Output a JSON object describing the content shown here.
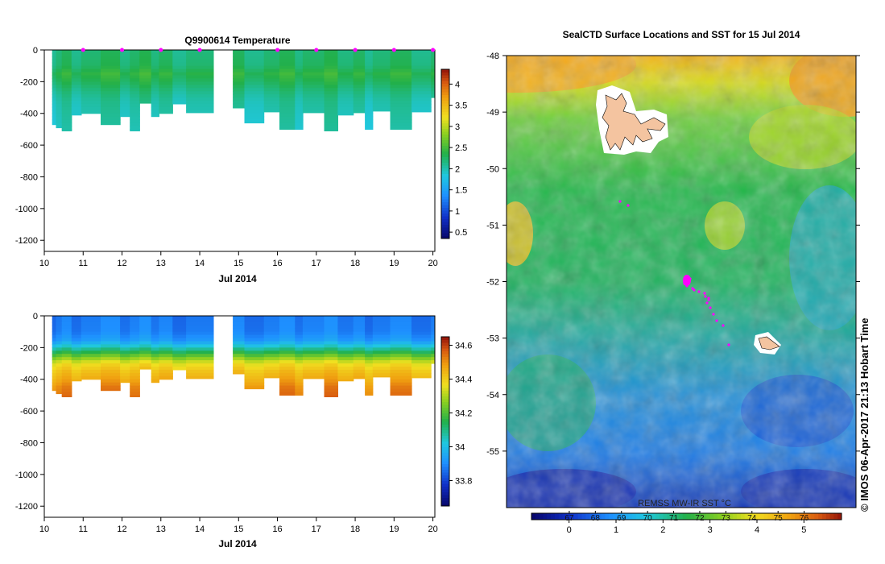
{
  "chart_data": [
    {
      "type": "heatmap",
      "title": "Q9900614  Temperature",
      "xlabel": "Jul 2014",
      "ylabel": "",
      "x_ticks": [
        "10",
        "11",
        "12",
        "13",
        "14",
        "15",
        "16",
        "17",
        "18",
        "19",
        "20"
      ],
      "y_ticks": [
        "0",
        "-200",
        "-400",
        "-600",
        "-800",
        "-1000",
        "-1200"
      ],
      "xlim": [
        10,
        20.05
      ],
      "ylim": [
        -1270,
        0
      ],
      "colorbar_ticks": [
        "0.5",
        "1",
        "1.5",
        "2",
        "2.5",
        "3",
        "3.5",
        "4"
      ],
      "colorbar_range": [
        0.35,
        4.35
      ],
      "profile_markers_x": [
        11,
        12,
        13,
        14,
        16,
        17,
        18,
        19,
        20
      ],
      "profiles": [
        {
          "x0": 10.2,
          "x1": 10.3,
          "bottom": -470
        },
        {
          "x0": 10.3,
          "x1": 10.45,
          "bottom": -490
        },
        {
          "x0": 10.45,
          "x1": 10.7,
          "bottom": -510
        },
        {
          "x0": 10.7,
          "x1": 10.95,
          "bottom": -410
        },
        {
          "x0": 10.95,
          "x1": 11.45,
          "bottom": -400
        },
        {
          "x0": 11.45,
          "x1": 11.95,
          "bottom": -470
        },
        {
          "x0": 11.95,
          "x1": 12.2,
          "bottom": -420
        },
        {
          "x0": 12.2,
          "x1": 12.45,
          "bottom": -510
        },
        {
          "x0": 12.45,
          "x1": 12.75,
          "bottom": -335
        },
        {
          "x0": 12.75,
          "x1": 12.95,
          "bottom": -420
        },
        {
          "x0": 12.95,
          "x1": 13.3,
          "bottom": -400
        },
        {
          "x0": 13.3,
          "x1": 13.65,
          "bottom": -340
        },
        {
          "x0": 13.65,
          "x1": 14.35,
          "bottom": -395
        },
        {
          "x0": 14.85,
          "x1": 15.15,
          "bottom": -365
        },
        {
          "x0": 15.15,
          "x1": 15.65,
          "bottom": -460
        },
        {
          "x0": 15.65,
          "x1": 16.05,
          "bottom": -390
        },
        {
          "x0": 16.05,
          "x1": 16.45,
          "bottom": -500
        },
        {
          "x0": 16.45,
          "x1": 16.65,
          "bottom": -500
        },
        {
          "x0": 16.65,
          "x1": 17.2,
          "bottom": -395
        },
        {
          "x0": 17.2,
          "x1": 17.55,
          "bottom": -510
        },
        {
          "x0": 17.55,
          "x1": 17.95,
          "bottom": -410
        },
        {
          "x0": 17.95,
          "x1": 18.25,
          "bottom": -395
        },
        {
          "x0": 18.25,
          "x1": 18.45,
          "bottom": -500
        },
        {
          "x0": 18.45,
          "x1": 18.9,
          "bottom": -385
        },
        {
          "x0": 18.9,
          "x1": 19.45,
          "bottom": -500
        },
        {
          "x0": 19.45,
          "x1": 19.95,
          "bottom": -390
        },
        {
          "x0": 19.95,
          "x1": 20.05,
          "bottom": -300
        }
      ],
      "value_by_depth": [
        [
          0,
          2.2
        ],
        [
          -100,
          2.25
        ],
        [
          -150,
          2.4
        ],
        [
          -200,
          2.3
        ],
        [
          -260,
          2.15
        ],
        [
          -320,
          2.05
        ],
        [
          -400,
          2.0
        ],
        [
          -520,
          1.95
        ]
      ]
    },
    {
      "type": "heatmap",
      "title": "",
      "xlabel": "Jul 2014",
      "ylabel": "",
      "x_ticks": [
        "10",
        "11",
        "12",
        "13",
        "14",
        "15",
        "16",
        "17",
        "18",
        "19",
        "20"
      ],
      "y_ticks": [
        "0",
        "-200",
        "-400",
        "-600",
        "-800",
        "-1000",
        "-1200"
      ],
      "xlim": [
        10,
        20.05
      ],
      "ylim": [
        -1270,
        0
      ],
      "colorbar_ticks": [
        "33.8",
        "34",
        "34.2",
        "34.4",
        "34.6"
      ],
      "colorbar_range": [
        33.65,
        34.65
      ],
      "value_by_depth": [
        [
          0,
          33.87
        ],
        [
          -100,
          33.88
        ],
        [
          -150,
          33.92
        ],
        [
          -180,
          33.99
        ],
        [
          -220,
          34.12
        ],
        [
          -260,
          34.25
        ],
        [
          -300,
          34.37
        ],
        [
          -350,
          34.43
        ],
        [
          -400,
          34.47
        ],
        [
          -450,
          34.52
        ],
        [
          -520,
          34.55
        ]
      ]
    },
    {
      "type": "heatmap",
      "title": "SealCTD Surface Locations and SST for 15 Jul 2014",
      "xlabel": "",
      "ylabel": "",
      "y_ticks": [
        "-48",
        "-49",
        "-50",
        "-51",
        "-52",
        "-53",
        "-54",
        "-55"
      ],
      "ylim": [
        -56,
        -48
      ],
      "colorbar_title": "REMSS MW-IR SST °C",
      "colorbar_ticks_f": [
        "67",
        "68",
        "69",
        "70",
        "71",
        "72",
        "73",
        "74",
        "75",
        "76"
      ],
      "colorbar_ticks_c": [
        "0",
        "1",
        "2",
        "3",
        "4",
        "5"
      ],
      "colorbar_range_c": [
        -0.8,
        5.8
      ]
    }
  ],
  "side_caption": "© IMOS 06-Apr-2017 21:13 Hobart Time",
  "colors": {
    "land": "#f4c4a0",
    "marker": "#ff00ff",
    "frame": "#000000"
  }
}
